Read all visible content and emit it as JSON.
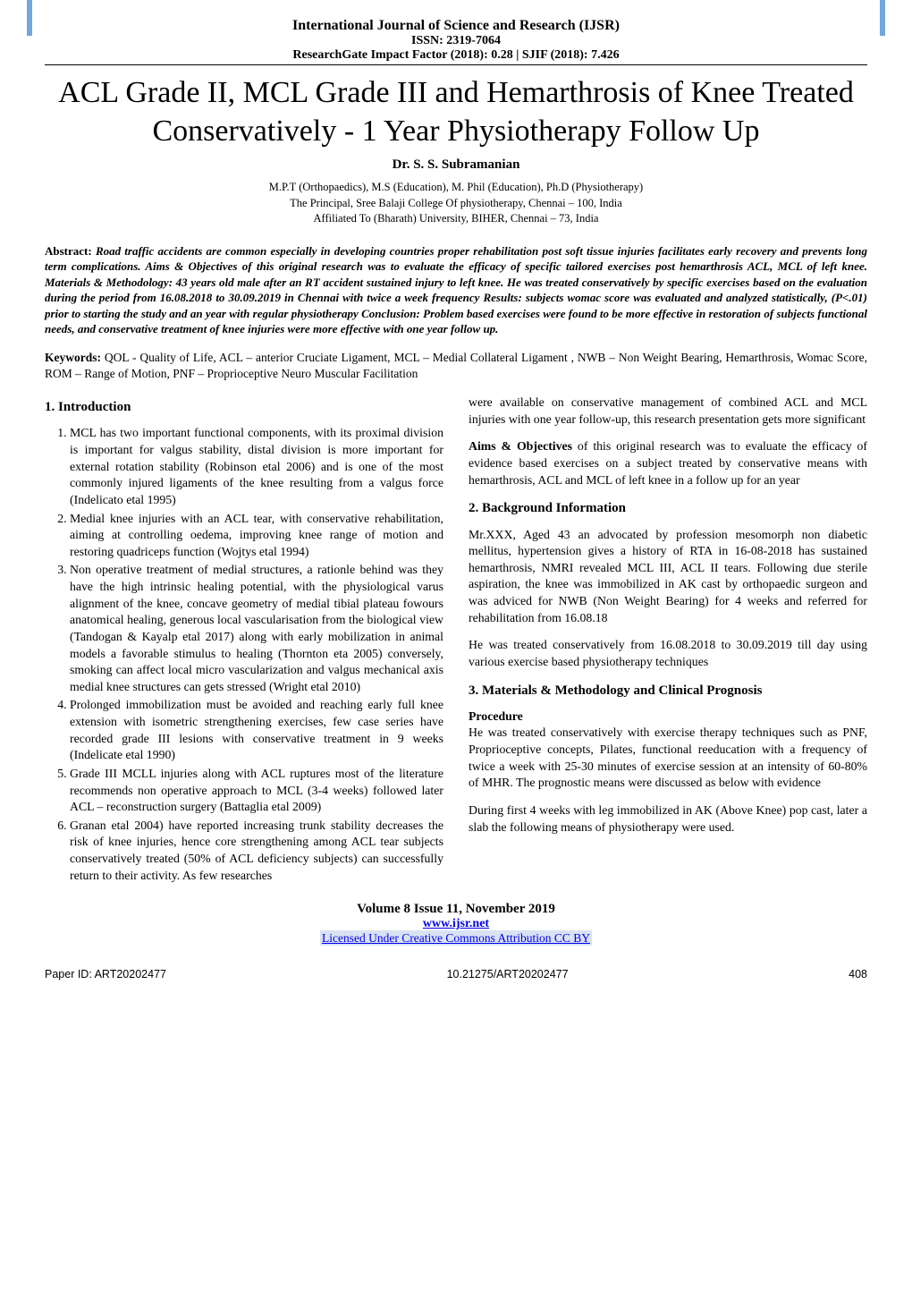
{
  "header": {
    "journal_name": "International Journal of Science and Research (IJSR)",
    "issn": "ISSN: 2319-7064",
    "impact_factor": "ResearchGate Impact Factor (2018): 0.28 | SJIF (2018): 7.426"
  },
  "article": {
    "title": "ACL Grade II, MCL Grade III and Hemarthrosis of Knee Treated Conservatively - 1 Year Physiotherapy Follow Up",
    "author": "Dr. S. S. Subramanian",
    "affiliation_line1": "M.P.T (Orthopaedics), M.S (Education), M. Phil (Education), Ph.D (Physiotherapy)",
    "affiliation_line2": "The Principal, Sree Balaji College Of physiotherapy, Chennai – 100, India",
    "affiliation_line3": "Affiliated To (Bharath) University, BIHER, Chennai – 73, India"
  },
  "abstract": {
    "label": "Abstract:",
    "text": "Road traffic accidents are common especially in developing countries proper rehabilitation post soft tissue injuries facilitates early recovery and prevents long term complications. Aims & Objectives of this original research was to evaluate the efficacy of specific tailored exercises post hemarthrosis ACL, MCL of left knee. Materials & Methodology: 43 years old male after an RT accident sustained injury to left knee. He was treated conservatively by specific exercises based on the evaluation during the period from 16.08.2018 to 30.09.2019 in Chennai with twice a week frequency Results: subjects womac score was evaluated and analyzed statistically, (P<.01) prior to starting the study and an year with regular physiotherapy Conclusion: Problem based exercises were found to be more effective in restoration of subjects functional needs, and conservative treatment of knee injuries were more effective with one year follow up."
  },
  "keywords": {
    "label": "Keywords:",
    "text": "QOL - Quality of Life, ACL – anterior Cruciate Ligament, MCL – Medial Collateral Ligament , NWB – Non Weight Bearing, Hemarthrosis, Womac Score, ROM – Range of Motion, PNF – Proprioceptive Neuro Muscular Facilitation"
  },
  "sections": {
    "intro_heading": "1. Introduction",
    "intro_items": [
      "MCL has two important functional components, with its proximal division is important for valgus stability, distal division  is more important for external rotation stability (Robinson etal 2006) and is one of the most commonly injured ligaments of the knee resulting from a valgus force (Indelicato etal 1995)",
      "Medial knee injuries with an ACL tear, with conservative rehabilitation, aiming at controlling oedema, improving knee range of motion and restoring quadriceps function (Wojtys etal 1994)",
      "Non operative treatment of medial structures, a rationle behind was they have the high intrinsic healing potential, with the physiological varus alignment of the knee, concave geometry of medial tibial plateau fowours anatomical healing, generous local vascularisation from the biological view (Tandogan  & Kayalp etal 2017) along with early mobilization in animal models a favorable stimulus to healing (Thornton eta  2005) conversely, smoking can affect local micro vascularization and valgus mechanical axis medial knee structures can gets stressed (Wright etal 2010)",
      "Prolonged immobilization must be avoided and reaching early full knee extension with isometric strengthening exercises, few case series have recorded grade III lesions with conservative treatment in 9 weeks (Indelicate etal 1990)",
      "Grade III MCLL injuries along with ACL ruptures most of the literature recommends non operative approach to MCL (3-4 weeks) followed later ACL – reconstruction surgery (Battaglia etal 2009)",
      "Granan etal 2004)  have reported increasing trunk stability decreases the risk of knee injuries, hence core strengthening among ACL tear subjects conservatively treated (50% of ACL deficiency subjects) can successfully return to their activity. As few researches"
    ],
    "col2_intro_continuation": "were available on conservative management of combined ACL and MCL injuries with one year follow-up, this research presentation gets more significant",
    "aims_label": "Aims & Objectives",
    "aims_text": " of this original research was to evaluate the efficacy of evidence based exercises on a subject treated by conservative means with hemarthrosis, ACL and MCL of left knee in a follow up for an year",
    "background_heading": "2. Background Information",
    "background_p1": "Mr.XXX, Aged 43 an advocated by profession mesomorph non diabetic mellitus, hypertension gives a history of RTA in 16-08-2018 has sustained hemarthrosis, NMRI revealed MCL III, ACL II tears. Following due sterile aspiration, the knee was immobilized in AK cast by orthopaedic surgeon and was adviced for NWB (Non Weight Bearing) for 4 weeks and referred for rehabilitation from 16.08.18",
    "background_p2": "He was treated conservatively from 16.08.2018 to 30.09.2019 till day using various exercise based physiotherapy techniques",
    "materials_heading": "3. Materials & Methodology and Clinical Prognosis",
    "procedure_label": "Procedure",
    "procedure_p1": "He was treated conservatively with exercise therapy techniques such as PNF, Proprioceptive concepts, Pilates, functional reeducation with a frequency of twice a week with 25-30 minutes of exercise session at an intensity of 60-80% of MHR. The prognostic means were discussed as below with evidence",
    "procedure_p2": "During first 4 weeks with leg immobilized in AK (Above Knee) pop cast, later a slab the following means of physiotherapy were used."
  },
  "footer": {
    "volume": "Volume 8 Issue 11, November 2019",
    "site": "www.ijsr.net",
    "license": "Licensed Under Creative Commons Attribution CC BY",
    "paper_id": "Paper ID: ART20202477",
    "doi": "10.21275/ART20202477",
    "page_num": "408"
  },
  "colors": {
    "stripe": "#6fa8dc",
    "link": "#0000ee",
    "license_bg": "#d9e2f3",
    "text": "#000000",
    "background": "#ffffff"
  }
}
